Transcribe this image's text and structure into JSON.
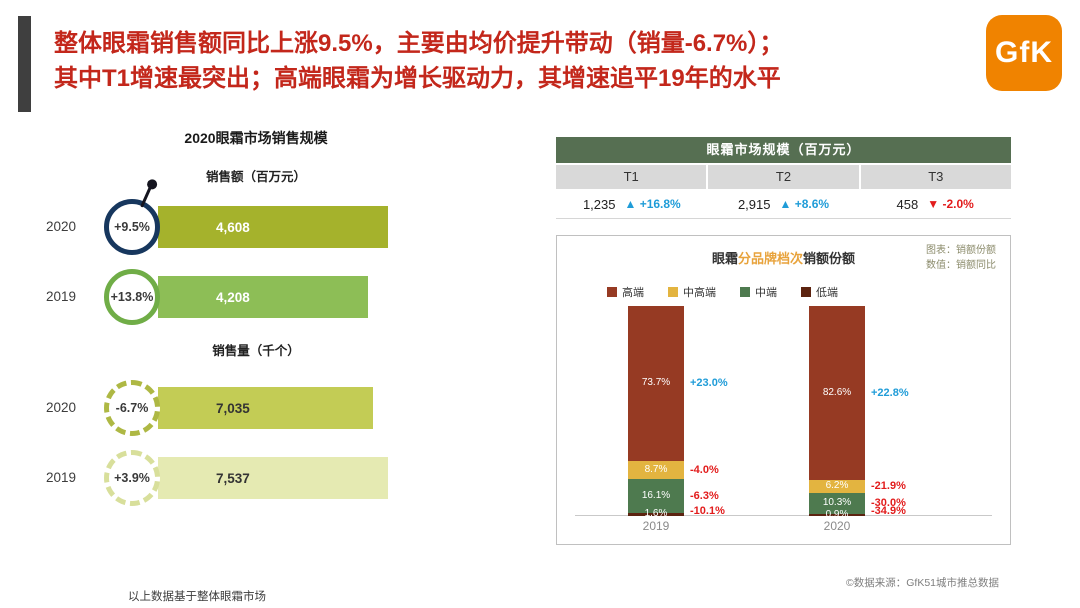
{
  "header": {
    "title_line1": "整体眼霜销售额同比上涨9.5%，主要由均价提升带动（销量-6.7%）；",
    "title_line2": "其中T1增速最突出；高端眼霜为增长驱动力，其增速追平19年的水平",
    "title_color": "#C3271B",
    "logo_text": "GfK",
    "logo_color": "#F08300"
  },
  "left_chart": {
    "title": "2020眼霜市场销售规模",
    "sales_subtitle": "销售额（百万元）",
    "volume_subtitle": "销售量（千个）",
    "rows": [
      {
        "year": "2020",
        "badge": "+9.5%",
        "value": "4,608",
        "bar_color": "#A5B22C",
        "ring_color": "#17375E",
        "ring_style": "solid",
        "group": 0,
        "idx": 0
      },
      {
        "year": "2019",
        "badge": "+13.8%",
        "value": "4,208",
        "bar_color": "#8DBE56",
        "ring_color": "#70AD47",
        "ring_style": "solid",
        "group": 0,
        "idx": 1
      },
      {
        "year": "2020",
        "badge": "-6.7%",
        "value": "7,035",
        "bar_color": "#C3CC55",
        "ring_color": "#AEB844",
        "ring_style": "dashed",
        "group": 1,
        "idx": 0
      },
      {
        "year": "2019",
        "badge": "+3.9%",
        "value": "7,537",
        "bar_color": "#E5EAB2",
        "ring_color": "#D8DF9B",
        "ring_style": "dashed",
        "group": 1,
        "idx": 1
      }
    ],
    "footnote": "以上数据基于整体眼霜市场"
  },
  "table": {
    "title": "眼霜市场规模（百万元）",
    "header_bg": "#566F52",
    "columns": [
      "T1",
      "T2",
      "T3"
    ],
    "cells": [
      {
        "value": "1,235",
        "change": "▲ +16.8%",
        "dir": "up"
      },
      {
        "value": "2,915",
        "change": "▲ +8.6%",
        "dir": "up"
      },
      {
        "value": "458",
        "change": "▼ -2.0%",
        "dir": "down"
      }
    ]
  },
  "stacked_chart": {
    "title_prefix": "眼霜",
    "title_highlight": "分品牌档次",
    "title_suffix": "销额份额",
    "highlight_color": "#E8A33C",
    "note_line1": "图表：销额份额",
    "note_line2": "数值：销额同比",
    "legend": [
      "高端",
      "中高端",
      "中端",
      "低端"
    ],
    "bars": [
      {
        "year": "2019",
        "segments": [
          {
            "label": "73.7%",
            "yoy": "+23.0%",
            "dir": "up"
          },
          {
            "label": "8.7%",
            "yoy": "-4.0%",
            "dir": "down"
          },
          {
            "label": "16.1%",
            "yoy": "-6.3%",
            "dir": "down"
          },
          {
            "label": "1.6%",
            "yoy": "-10.1%",
            "dir": "down"
          }
        ]
      },
      {
        "year": "2020",
        "segments": [
          {
            "label": "82.6%",
            "yoy": "+22.8%",
            "dir": "up"
          },
          {
            "label": "6.2%",
            "yoy": "-21.9%",
            "dir": "down"
          },
          {
            "label": "10.3%",
            "yoy": "-30.0%",
            "dir": "down"
          },
          {
            "label": "0.9%",
            "yoy": "-34.9%",
            "dir": "down"
          }
        ]
      }
    ]
  },
  "source": "©数据来源：GfK51城市推总数据",
  "status_colors": {
    "up_blue": "#1F9CD8",
    "down_red": "#E21C1C"
  },
  "chart_data": [
    {
      "type": "bar",
      "orientation": "horizontal",
      "title": "2020眼霜市场销售规模",
      "groups": [
        {
          "metric": "销售额（百万元）",
          "categories": [
            "2020",
            "2019"
          ],
          "values": [
            4608,
            4208
          ],
          "yoy_pct": [
            9.5,
            13.8
          ]
        },
        {
          "metric": "销售量（千个）",
          "categories": [
            "2020",
            "2019"
          ],
          "values": [
            7035,
            7537
          ],
          "yoy_pct": [
            -6.7,
            3.9
          ]
        }
      ]
    },
    {
      "type": "table",
      "title": "眼霜市场规模（百万元）",
      "columns": [
        "T1",
        "T2",
        "T3"
      ],
      "values": [
        1235,
        2915,
        458
      ],
      "yoy_pct": [
        16.8,
        8.6,
        -2.0
      ]
    },
    {
      "type": "bar",
      "subtype": "stacked-100",
      "title": "眼霜分品牌档次销额份额",
      "categories": [
        "2019",
        "2020"
      ],
      "unit": "%",
      "ylim": [
        0,
        100
      ],
      "legend_position": "top",
      "series": [
        {
          "name": "高端",
          "color": "#963A23",
          "values": [
            73.7,
            82.6
          ],
          "yoy_pct": [
            23.0,
            22.8
          ]
        },
        {
          "name": "中高端",
          "color": "#E3B440",
          "values": [
            8.7,
            6.2
          ],
          "yoy_pct": [
            -4.0,
            -21.9
          ]
        },
        {
          "name": "中端",
          "color": "#4E7A4F",
          "values": [
            16.1,
            10.3
          ],
          "yoy_pct": [
            -6.3,
            -30.0
          ]
        },
        {
          "name": "低端",
          "color": "#5C2310",
          "values": [
            1.6,
            0.9
          ],
          "yoy_pct": [
            -10.1,
            -34.9
          ]
        }
      ]
    }
  ]
}
